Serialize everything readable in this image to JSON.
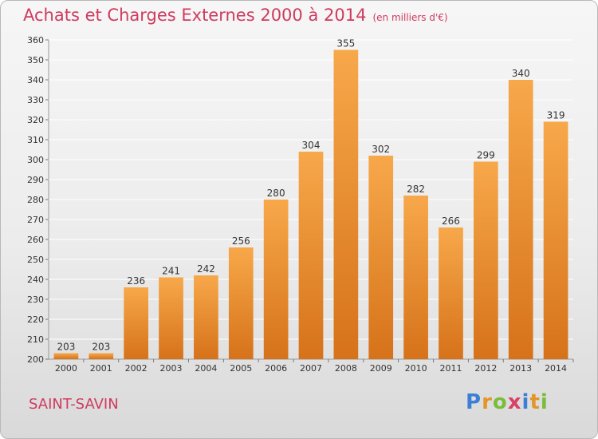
{
  "header": {
    "title": "Achats et Charges Externes 2000 à 2014",
    "unit": "(en milliers d'€)"
  },
  "footer": {
    "place": "SAINT-SAVIN",
    "logo": "Proxiti"
  },
  "colors": {
    "bar_light": "#f7a84a",
    "bar_dark": "#d6721a",
    "title": "#cf3b5e",
    "grid": "#ffffff"
  },
  "chart_data": {
    "type": "bar",
    "title": "Achats et Charges Externes 2000 à 2014",
    "subtitle": "(en milliers d'€)",
    "xlabel": "",
    "ylabel": "",
    "categories": [
      "2000",
      "2001",
      "2002",
      "2003",
      "2004",
      "2005",
      "2006",
      "2007",
      "2008",
      "2009",
      "2010",
      "2011",
      "2012",
      "2013",
      "2014"
    ],
    "values": [
      203,
      203,
      236,
      241,
      242,
      256,
      280,
      304,
      355,
      302,
      282,
      266,
      299,
      340,
      319
    ],
    "ylim": [
      200,
      360
    ],
    "yticks": [
      200,
      210,
      220,
      230,
      240,
      250,
      260,
      270,
      280,
      290,
      300,
      310,
      320,
      330,
      340,
      350,
      360
    ],
    "grid": true,
    "data_labels": true
  }
}
